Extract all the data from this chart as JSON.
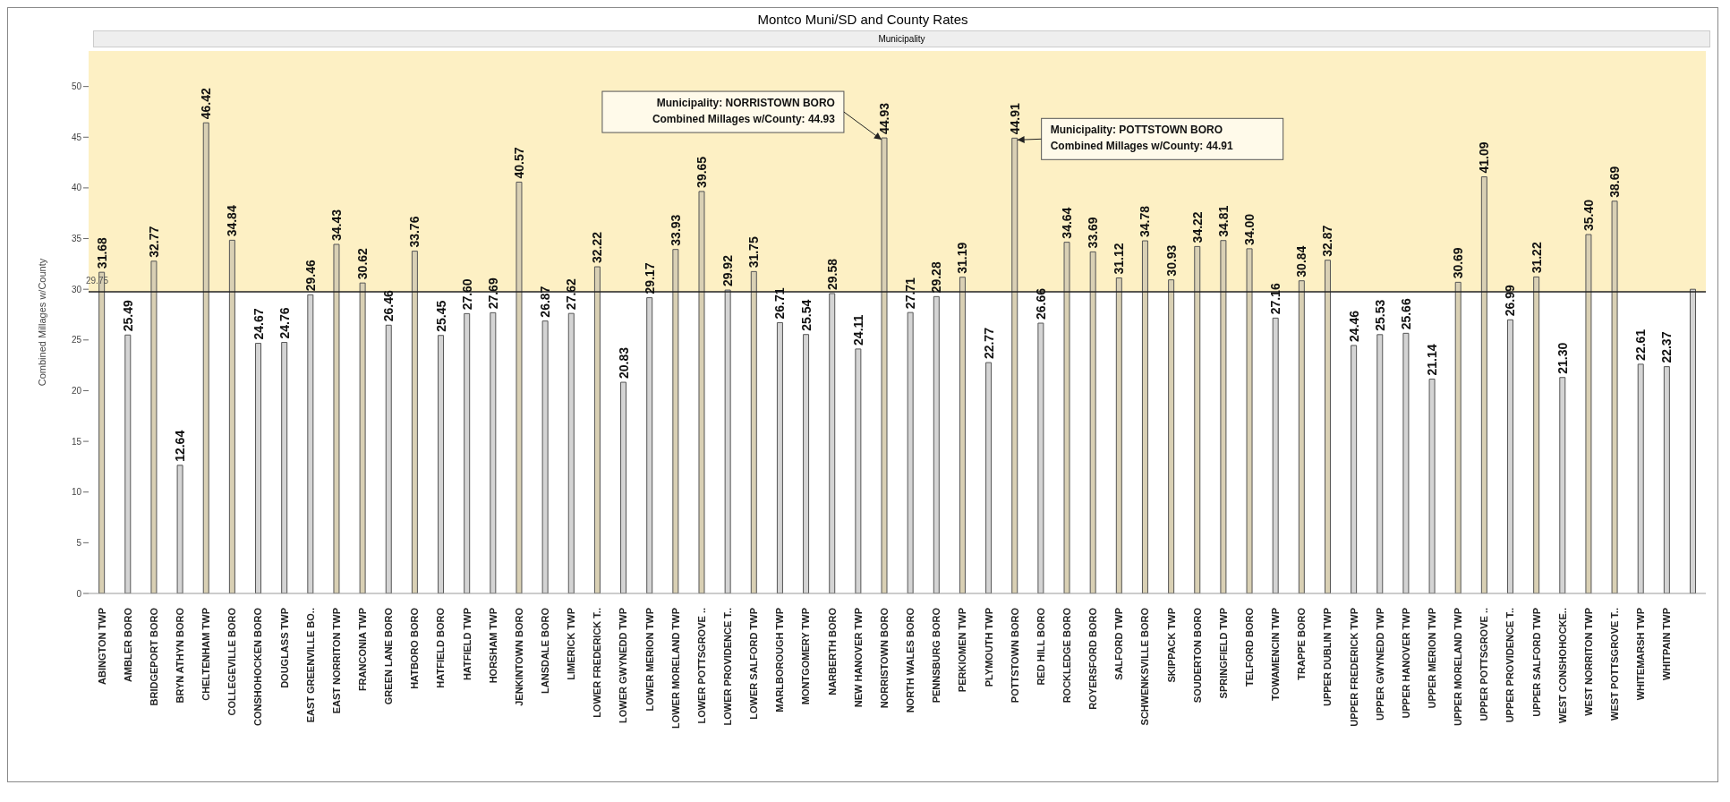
{
  "chart_data": {
    "type": "bar",
    "title": "Montco Muni/SD and County Rates",
    "subtitle": "Municipality",
    "ylabel": "Combined Millages w/County",
    "categories": [
      "ABINGTON TWP",
      "AMBLER BORO",
      "BRIDGEPORT BORO",
      "BRYN ATHYN BORO",
      "CHELTENHAM TWP",
      "COLLEGEVILLE BORO",
      "CONSHOHOCKEN BORO",
      "DOUGLASS TWP",
      "EAST GREENVILLE BO..",
      "EAST NORRITON TWP",
      "FRANCONIA TWP",
      "GREEN LANE BORO",
      "HATBORO BORO",
      "HATFIELD BORO",
      "HATFIELD TWP",
      "HORSHAM TWP",
      "JENKINTOWN BORO",
      "LANSDALE BORO",
      "LIMERICK TWP",
      "LOWER FREDERICK T..",
      "LOWER GWYNEDD TWP",
      "LOWER MERION TWP",
      "LOWER MORELAND TWP",
      "LOWER POTTSGROVE ..",
      "LOWER PROVIDENCE T..",
      "LOWER SALFORD TWP",
      "MARLBOROUGH TWP",
      "MONTGOMERY TWP",
      "NARBERTH BORO",
      "NEW HANOVER TWP",
      "NORRISTOWN BORO",
      "NORTH WALES BORO",
      "PENNSBURG BORO",
      "PERKIOMEN TWP",
      "PLYMOUTH TWP",
      "POTTSTOWN BORO",
      "RED HILL BORO",
      "ROCKLEDGE BORO",
      "ROYERSFORD BORO",
      "SALFORD TWP",
      "SCHWENKSVILLE BORO",
      "SKIPPACK TWP",
      "SOUDERTON BORO",
      "SPRINGFIELD TWP",
      "TELFORD BORO",
      "TOWAMENCIN TWP",
      "TRAPPE BORO",
      "UPPER DUBLIN TWP",
      "UPPER FREDERICK TWP",
      "UPPER GWYNEDD TWP",
      "UPPER HANOVER TWP",
      "UPPER MERION TWP",
      "UPPER MORELAND TWP",
      "UPPER POTTSGROVE ..",
      "UPPER PROVIDENCE T..",
      "UPPER SALFORD TWP",
      "WEST CONSHOHOCKE..",
      "WEST NORRITON TWP",
      "WEST POTTSGROVE T..",
      "WHITEMARSH TWP",
      "WHITPAIN TWP",
      null
    ],
    "values": [
      31.68,
      25.49,
      32.77,
      12.64,
      46.42,
      34.84,
      24.67,
      24.76,
      29.46,
      34.43,
      30.62,
      26.46,
      33.76,
      25.45,
      27.6,
      27.69,
      40.57,
      26.87,
      27.62,
      32.22,
      20.83,
      29.17,
      33.93,
      39.65,
      29.92,
      31.75,
      26.71,
      25.54,
      29.58,
      24.11,
      44.93,
      27.71,
      29.28,
      31.19,
      22.77,
      44.91,
      26.66,
      34.64,
      33.69,
      31.12,
      34.78,
      30.93,
      34.22,
      34.81,
      34.0,
      27.16,
      30.84,
      32.87,
      24.46,
      25.53,
      25.66,
      21.14,
      30.69,
      41.09,
      26.99,
      31.22,
      21.3,
      35.4,
      38.69,
      22.61,
      22.37,
      30
    ],
    "value_labels": [
      "31.68",
      "25.49",
      "32.77",
      "12.64",
      "46.42",
      "34.84",
      "24.67",
      "24.76",
      "29.46",
      "34.43",
      "30.62",
      "26.46",
      "33.76",
      "25.45",
      "27.60",
      "27.69",
      "40.57",
      "26.87",
      "27.62",
      "32.22",
      "20.83",
      "29.17",
      "33.93",
      "39.65",
      "29.92",
      "31.75",
      "26.71",
      "25.54",
      "29.58",
      "24.11",
      "44.93",
      "27.71",
      "29.28",
      "31.19",
      "22.77",
      "44.91",
      "26.66",
      "34.64",
      "33.69",
      "31.12",
      "34.78",
      "30.93",
      "34.22",
      "34.81",
      "34.00",
      "27.16",
      "30.84",
      "32.87",
      "24.46",
      "25.53",
      "25.66",
      "21.14",
      "30.69",
      "41.09",
      "26.99",
      "31.22",
      "21.30",
      "35.40",
      "38.69",
      "22.61",
      "22.37",
      null
    ],
    "colors": [
      "#d9d0b4",
      "#d4d4d4",
      "#d9d0b4",
      "#d4d4d4",
      "#d9d0b4",
      "#d9d0b4",
      "#d4d4d4",
      "#d4d4d4",
      "#d4d4d4",
      "#d9d0b4",
      "#d9d0b4",
      "#d4d4d4",
      "#d9d0b4",
      "#d4d4d4",
      "#d4d4d4",
      "#d4d4d4",
      "#d9d0b4",
      "#d4d4d4",
      "#d4d4d4",
      "#d9d0b4",
      "#d4d4d4",
      "#d4d4d4",
      "#d9d0b4",
      "#d9d0b4",
      "#d4d4d4",
      "#d9d0b4",
      "#d4d4d4",
      "#d4d4d4",
      "#d4d4d4",
      "#d4d4d4",
      "#d9d0b4",
      "#d4d4d4",
      "#d4d4d4",
      "#d9d0b4",
      "#d4d4d4",
      "#d9d0b4",
      "#d4d4d4",
      "#d9d0b4",
      "#d9d0b4",
      "#d9d0b4",
      "#d9d0b4",
      "#d9d0b4",
      "#d9d0b4",
      "#d9d0b4",
      "#d9d0b4",
      "#d4d4d4",
      "#d9d0b4",
      "#d9d0b4",
      "#d4d4d4",
      "#d4d4d4",
      "#d4d4d4",
      "#d4d4d4",
      "#d9d0b4",
      "#d9d0b4",
      "#d4d4d4",
      "#d9d0b4",
      "#d4d4d4",
      "#d9d0b4",
      "#d9d0b4",
      "#d4d4d4",
      "#d4d4d4",
      "#d4d4d4"
    ],
    "ylim": [
      0,
      53.5
    ],
    "yticks": [
      0,
      5,
      10,
      15,
      20,
      25,
      30,
      35,
      40,
      45,
      50
    ],
    "ref_lines": [
      {
        "axis": "y",
        "value": 29.75,
        "label": "29.75",
        "color": "#222222"
      }
    ],
    "bands": [
      {
        "axis": "y",
        "from": 29.75,
        "to": 53.5,
        "color": "#fdf0c4"
      }
    ],
    "annotations": [
      {
        "text": "Municipality: NORRISTOWN BORO\nCombined Millages w/County: 44.93",
        "x": "NORRISTOWN BORO",
        "y": 44.93
      },
      {
        "text": "Municipality: POTTSTOWN BORO\nCombined Millages w/County: 44.91",
        "x": "POTTSTOWN BORO",
        "y": 44.91
      }
    ],
    "grid": false,
    "legend": false
  }
}
